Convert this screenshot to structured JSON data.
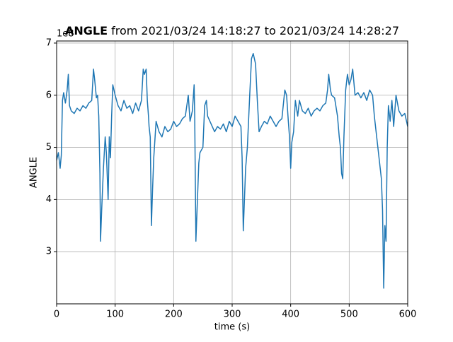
{
  "chart_data": {
    "type": "line",
    "title_bold": "ANGLE",
    "title": "from 2021/03/24 14:18:27 to 2021/03/24 14:28:27",
    "xlabel": "time (s)",
    "ylabel": "ANGLE",
    "y_offset_label": "1e8",
    "x": [
      0,
      3,
      6,
      8,
      10,
      12,
      15,
      18,
      20,
      22,
      25,
      30,
      35,
      40,
      45,
      50,
      55,
      60,
      63,
      65,
      68,
      70,
      72,
      74,
      75,
      77,
      80,
      83,
      85,
      88,
      90,
      92,
      94,
      96,
      100,
      105,
      110,
      115,
      120,
      125,
      130,
      135,
      140,
      145,
      148,
      150,
      153,
      155,
      157,
      158,
      160,
      162,
      164,
      166,
      170,
      175,
      180,
      185,
      190,
      195,
      200,
      205,
      210,
      215,
      220,
      225,
      228,
      232,
      235,
      236,
      238,
      240,
      243,
      245,
      250,
      253,
      256,
      258,
      262,
      266,
      270,
      275,
      280,
      285,
      290,
      295,
      300,
      305,
      310,
      315,
      317,
      319,
      321,
      323,
      326,
      330,
      333,
      336,
      340,
      343,
      346,
      350,
      355,
      360,
      365,
      370,
      375,
      380,
      385,
      390,
      393,
      396,
      398,
      400,
      402,
      405,
      408,
      412,
      415,
      420,
      425,
      430,
      435,
      440,
      445,
      450,
      455,
      460,
      463,
      465,
      468,
      470,
      475,
      480,
      483,
      485,
      487,
      489,
      491,
      494,
      497,
      500,
      503,
      506,
      510,
      515,
      520,
      525,
      530,
      535,
      540,
      543,
      546,
      549,
      552,
      555,
      557,
      559,
      561,
      563,
      565,
      567,
      570,
      573,
      576,
      580,
      585,
      590,
      595,
      600
    ],
    "series": [
      {
        "name": "ANGLE",
        "color": "#1f77b4",
        "values": [
          4.75,
          4.9,
          4.6,
          4.85,
          5.9,
          6.05,
          5.85,
          6.1,
          6.4,
          5.8,
          5.7,
          5.65,
          5.75,
          5.7,
          5.8,
          5.75,
          5.85,
          5.9,
          6.5,
          6.3,
          5.95,
          6.0,
          5.6,
          4.5,
          3.2,
          3.8,
          4.6,
          5.2,
          4.9,
          4.0,
          5.2,
          4.8,
          5.6,
          6.2,
          6.0,
          5.8,
          5.7,
          5.9,
          5.75,
          5.8,
          5.65,
          5.85,
          5.7,
          5.9,
          6.5,
          6.4,
          6.5,
          5.9,
          5.6,
          5.4,
          5.2,
          3.5,
          4.2,
          4.8,
          5.5,
          5.3,
          5.2,
          5.4,
          5.3,
          5.35,
          5.5,
          5.4,
          5.45,
          5.55,
          5.6,
          6.0,
          5.5,
          5.7,
          6.2,
          5.6,
          3.2,
          3.8,
          4.7,
          4.9,
          5.0,
          5.8,
          5.9,
          5.6,
          5.5,
          5.4,
          5.3,
          5.4,
          5.35,
          5.45,
          5.3,
          5.5,
          5.4,
          5.6,
          5.5,
          5.4,
          4.8,
          3.4,
          4.0,
          4.6,
          5.0,
          6.0,
          6.7,
          6.8,
          6.6,
          5.9,
          5.3,
          5.4,
          5.5,
          5.45,
          5.6,
          5.5,
          5.4,
          5.5,
          5.55,
          6.1,
          6.0,
          5.5,
          5.2,
          4.6,
          5.1,
          5.3,
          5.9,
          5.6,
          5.9,
          5.7,
          5.65,
          5.75,
          5.6,
          5.7,
          5.75,
          5.7,
          5.8,
          5.85,
          6.1,
          6.4,
          6.1,
          6.0,
          5.95,
          5.6,
          5.2,
          5.0,
          4.5,
          4.4,
          5.2,
          6.1,
          6.4,
          6.2,
          6.3,
          6.5,
          6.0,
          6.05,
          5.95,
          6.05,
          5.9,
          6.1,
          6.0,
          5.6,
          5.3,
          5.0,
          4.7,
          4.4,
          3.8,
          2.3,
          3.5,
          3.2,
          5.0,
          5.8,
          5.5,
          5.9,
          5.4,
          6.0,
          5.7,
          5.6,
          5.65,
          5.4
        ]
      }
    ],
    "xlim": [
      0,
      600
    ],
    "ylim": [
      2.0,
      7.04
    ],
    "xticks": [
      0,
      100,
      200,
      300,
      400,
      500,
      600
    ],
    "yticks": [
      3,
      4,
      5,
      6,
      7
    ],
    "grid": true
  }
}
